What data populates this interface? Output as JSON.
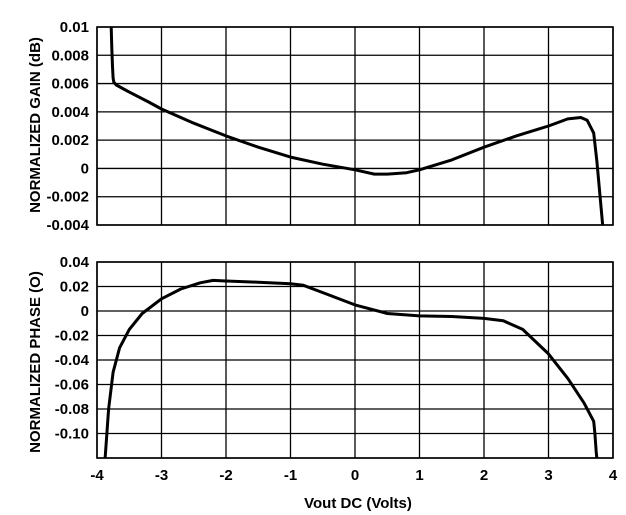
{
  "chart_data": [
    {
      "type": "line",
      "ylabel": "NORMALIZED GAIN (dB)",
      "xlabel": "",
      "grid": true,
      "xlim": [
        -4,
        4
      ],
      "ylim": [
        -0.004,
        0.01
      ],
      "x_ticks": [
        "-4",
        "-3",
        "-2",
        "-1",
        "0",
        "1",
        "2",
        "3",
        "4"
      ],
      "y_ticks": [
        "0.01",
        "0.008",
        "0.006",
        "0.004",
        "0.002",
        "0",
        "-0.002",
        "-0.004"
      ],
      "series": [
        {
          "x": [
            -3.78,
            -3.77,
            -3.76,
            -3.75,
            -3.74,
            -3.72,
            -3.7,
            -3.5,
            -3.2,
            -3.0,
            -2.5,
            -2.0,
            -1.5,
            -1.0,
            -0.5,
            0.0,
            0.3,
            0.5,
            0.8,
            1.0,
            1.5,
            2.0,
            2.5,
            3.0,
            3.3,
            3.5,
            3.6,
            3.7,
            3.75,
            3.8,
            3.85
          ],
          "y": [
            0.01,
            0.0085,
            0.0072,
            0.0064,
            0.0061,
            0.006,
            0.0059,
            0.0054,
            0.0047,
            0.0042,
            0.0032,
            0.0023,
            0.0015,
            0.0008,
            0.0003,
            -0.0001,
            -0.0004,
            -0.0004,
            -0.0003,
            -0.0001,
            0.0006,
            0.0015,
            0.0023,
            0.003,
            0.0035,
            0.0036,
            0.0034,
            0.0025,
            0.0005,
            -0.002,
            -0.0045
          ]
        }
      ]
    },
    {
      "type": "line",
      "ylabel": "NORMALIZED PHASE (O)",
      "xlabel": "Vout DC (Volts)",
      "grid": true,
      "xlim": [
        -4,
        4
      ],
      "ylim": [
        -0.12,
        0.04
      ],
      "x_ticks": [
        "-4",
        "-3",
        "-2",
        "-1",
        "0",
        "1",
        "2",
        "3",
        "4"
      ],
      "y_ticks": [
        "0.04",
        "0.02",
        "0",
        "-0.02",
        "-0.04",
        "-0.06",
        "-0.08",
        "-0.10"
      ],
      "series": [
        {
          "x": [
            -3.88,
            -3.86,
            -3.82,
            -3.75,
            -3.65,
            -3.5,
            -3.3,
            -3.0,
            -2.7,
            -2.4,
            -2.2,
            -2.0,
            -1.5,
            -1.0,
            -0.8,
            -0.5,
            0.0,
            0.5,
            1.0,
            1.5,
            2.0,
            2.3,
            2.6,
            3.0,
            3.3,
            3.55,
            3.65,
            3.7,
            3.72,
            3.74,
            3.76
          ],
          "y": [
            -0.125,
            -0.11,
            -0.08,
            -0.05,
            -0.03,
            -0.015,
            -0.002,
            0.01,
            0.018,
            0.023,
            0.025,
            0.0245,
            0.0235,
            0.0222,
            0.021,
            0.015,
            0.005,
            -0.002,
            -0.004,
            -0.0045,
            -0.006,
            -0.008,
            -0.015,
            -0.035,
            -0.055,
            -0.075,
            -0.085,
            -0.09,
            -0.1,
            -0.115,
            -0.125
          ]
        }
      ]
    }
  ]
}
